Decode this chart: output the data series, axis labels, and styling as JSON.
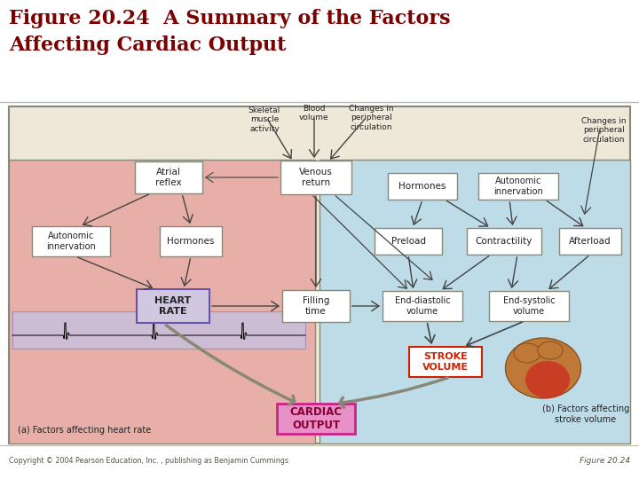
{
  "title_line1": "Figure 20.24  A Summary of the Factors",
  "title_line2": "Affecting Cardiac Output",
  "title_color": "#7B0000",
  "title_fontsize": 16,
  "copyright_text": "Copyright © 2004 Pearson Education, Inc. , publishing as Benjamin Cummings",
  "figure_label": "Figure 20.24",
  "bg_color": "#EDE8D8",
  "main_border_color": "#888877",
  "left_panel_color": "#E8AFA8",
  "right_panel_color": "#BEDCE8",
  "box_fill": "#FFFFFF",
  "heart_rate_fill": "#D0C8E0",
  "cardiac_fill": "#E890C8",
  "arrow_color": "#444444",
  "text_color": "#222222",
  "box_edge": "#888877",
  "red_box_edge": "#CC2200",
  "cardiac_box_edge": "#CC2288",
  "ecg_fill": "#C8C0DC",
  "heart_color": "#C8854A",
  "footer_color": "#555544"
}
